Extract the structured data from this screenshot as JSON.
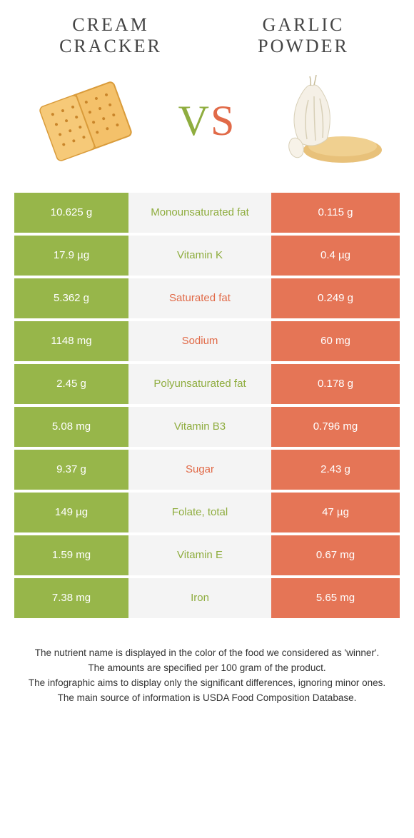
{
  "header": {
    "left_title": "CREAM CRACKER",
    "right_title": "GARLIC POWDER"
  },
  "vs_label": {
    "v": "V",
    "s": "S"
  },
  "colors": {
    "left": "#97b64a",
    "right": "#e57556",
    "mid_bg": "#f4f4f4",
    "left_text": "#8fad3f",
    "right_text": "#e16a48"
  },
  "rows": [
    {
      "left": "10.625 g",
      "label": "Monounsaturated fat",
      "right": "0.115 g",
      "winner": "left"
    },
    {
      "left": "17.9 µg",
      "label": "Vitamin K",
      "right": "0.4 µg",
      "winner": "left"
    },
    {
      "left": "5.362 g",
      "label": "Saturated fat",
      "right": "0.249 g",
      "winner": "right"
    },
    {
      "left": "1148 mg",
      "label": "Sodium",
      "right": "60 mg",
      "winner": "right"
    },
    {
      "left": "2.45 g",
      "label": "Polyunsaturated fat",
      "right": "0.178 g",
      "winner": "left"
    },
    {
      "left": "5.08 mg",
      "label": "Vitamin B3",
      "right": "0.796 mg",
      "winner": "left"
    },
    {
      "left": "9.37 g",
      "label": "Sugar",
      "right": "2.43 g",
      "winner": "right"
    },
    {
      "left": "149 µg",
      "label": "Folate, total",
      "right": "47 µg",
      "winner": "left"
    },
    {
      "left": "1.59 mg",
      "label": "Vitamin E",
      "right": "0.67 mg",
      "winner": "left"
    },
    {
      "left": "7.38 mg",
      "label": "Iron",
      "right": "5.65 mg",
      "winner": "left"
    }
  ],
  "footer_lines": [
    "The nutrient name is displayed in the color of the food we considered as 'winner'.",
    "The amounts are specified per 100 gram of the product.",
    "The infographic aims to display only the significant differences, ignoring minor ones.",
    "The main source of information is USDA Food Composition Database."
  ]
}
